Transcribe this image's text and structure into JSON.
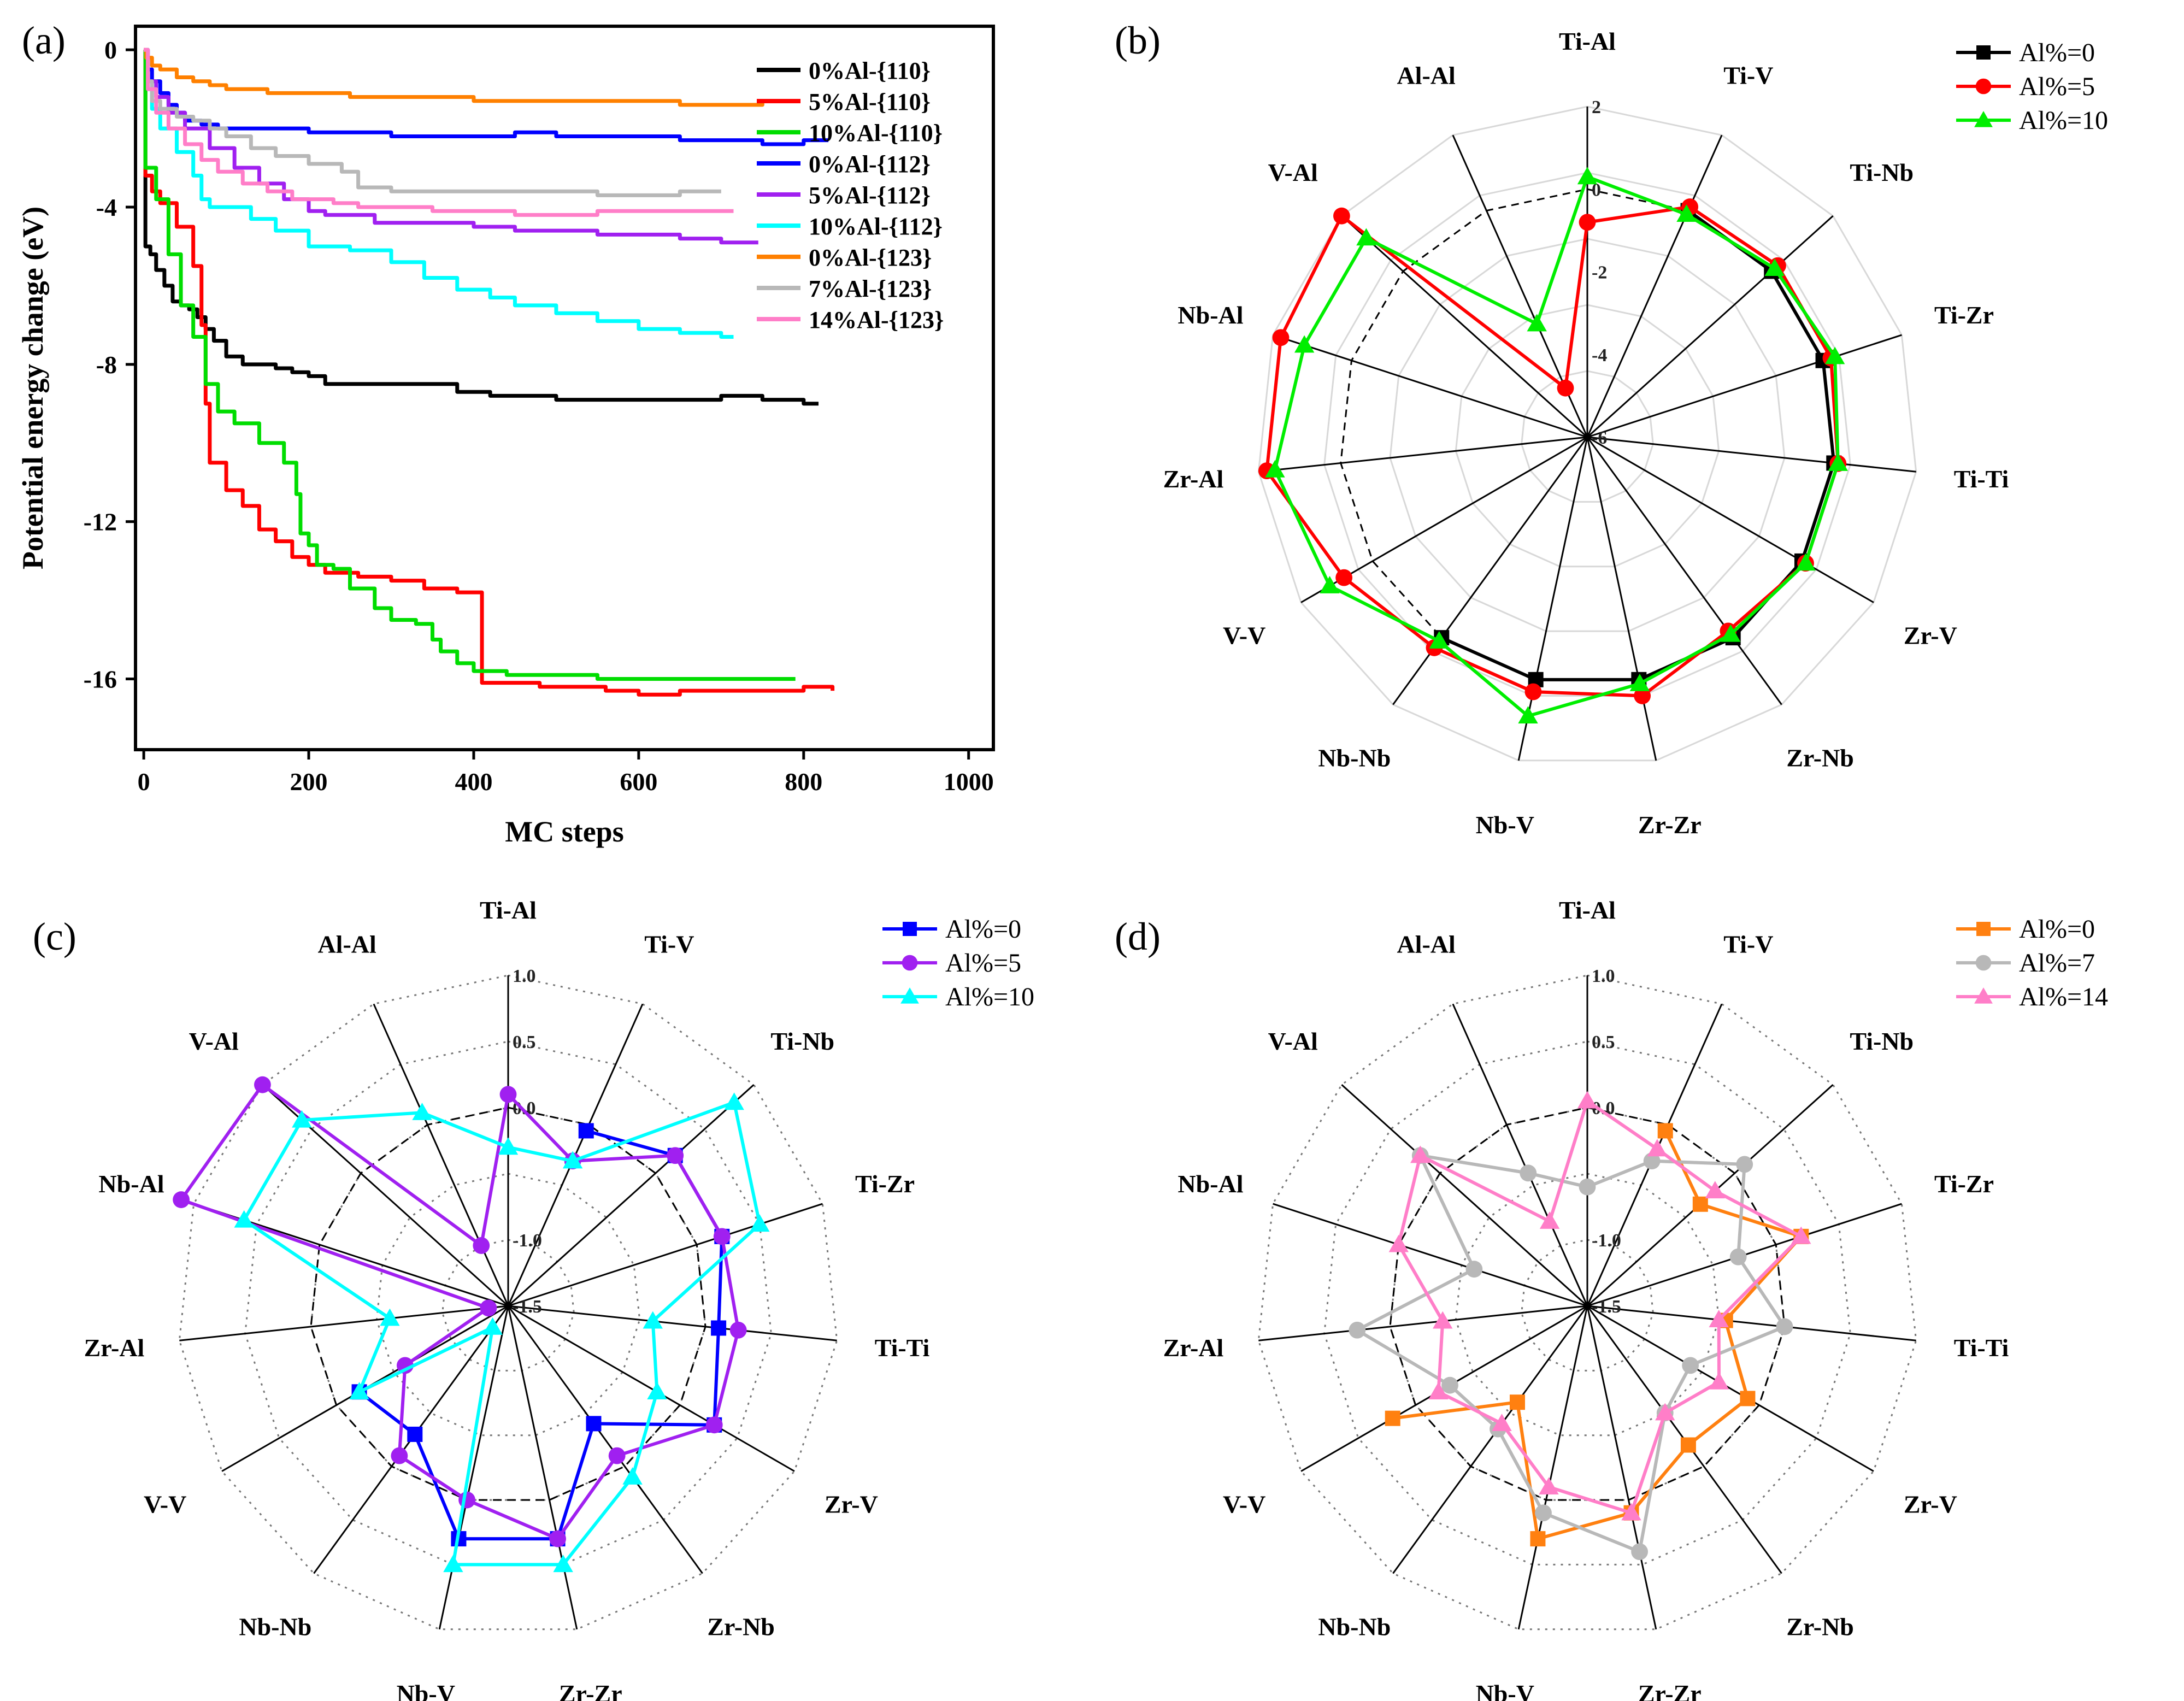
{
  "chart_data": [
    {
      "panel": "(a)",
      "type": "line",
      "xlabel": "MC steps",
      "ylabel": "Potential energy change (eV)",
      "xlim": [
        -10,
        1030
      ],
      "ylim": [
        -17.8,
        0.6
      ],
      "xticks": [
        0,
        200,
        400,
        600,
        800,
        1000
      ],
      "yticks": [
        0,
        -4,
        -8,
        -12,
        -16
      ],
      "series": [
        {
          "name": "0%Al-{110}",
          "color": "#000000",
          "x": [
            0,
            2,
            8,
            15,
            25,
            35,
            45,
            55,
            65,
            75,
            85,
            100,
            120,
            140,
            160,
            180,
            200,
            220,
            300,
            380,
            400,
            420,
            450,
            500,
            550,
            600,
            650,
            700,
            750,
            780,
            800,
            818
          ],
          "y": [
            0,
            -5,
            -5.2,
            -5.6,
            -6,
            -6.4,
            -6.5,
            -6.6,
            -6.8,
            -7.1,
            -7.4,
            -7.8,
            -8,
            -8,
            -8.1,
            -8.2,
            -8.3,
            -8.5,
            -8.5,
            -8.7,
            -8.7,
            -8.8,
            -8.8,
            -8.9,
            -8.9,
            -8.9,
            -8.9,
            -8.8,
            -8.9,
            -8.9,
            -9,
            -9
          ]
        },
        {
          "name": "5%Al-{110}",
          "color": "#ff0000",
          "x": [
            0,
            2,
            10,
            20,
            40,
            60,
            70,
            75,
            80,
            100,
            120,
            140,
            160,
            180,
            200,
            220,
            260,
            300,
            340,
            380,
            408,
            410,
            440,
            480,
            520,
            560,
            600,
            650,
            700,
            750,
            800,
            835
          ],
          "y": [
            0,
            -3.2,
            -3.6,
            -3.9,
            -4.5,
            -5.5,
            -7,
            -9,
            -10.5,
            -11.2,
            -11.6,
            -12.2,
            -12.5,
            -12.9,
            -13.1,
            -13.3,
            -13.4,
            -13.5,
            -13.7,
            -13.8,
            -13.8,
            -16.1,
            -16.1,
            -16.2,
            -16.2,
            -16.3,
            -16.4,
            -16.3,
            -16.3,
            -16.3,
            -16.2,
            -16.3
          ]
        },
        {
          "name": "10%Al-{110}",
          "color": "#00dd00",
          "x": [
            0,
            2,
            15,
            30,
            45,
            60,
            75,
            90,
            110,
            140,
            170,
            185,
            190,
            200,
            210,
            230,
            250,
            280,
            300,
            330,
            350,
            360,
            380,
            400,
            440,
            500,
            550,
            600,
            650,
            700,
            750,
            790
          ],
          "y": [
            0,
            -3,
            -3.8,
            -5.2,
            -6.5,
            -7.3,
            -8.5,
            -9.2,
            -9.5,
            -10,
            -10.5,
            -11.3,
            -12.3,
            -12.6,
            -13.1,
            -13.2,
            -13.7,
            -14.2,
            -14.5,
            -14.6,
            -15,
            -15.3,
            -15.6,
            -15.8,
            -15.9,
            -15.9,
            -16,
            -16,
            -16,
            -16,
            -16,
            -16
          ]
        },
        {
          "name": "0%Al-{112}",
          "color": "#0000ff",
          "x": [
            0,
            5,
            10,
            20,
            30,
            40,
            50,
            70,
            90,
            120,
            160,
            200,
            300,
            400,
            450,
            500,
            550,
            600,
            650,
            700,
            750,
            800,
            830
          ],
          "y": [
            0,
            -0.5,
            -0.8,
            -1.1,
            -1.4,
            -1.6,
            -1.8,
            -1.9,
            -2,
            -2,
            -2,
            -2.1,
            -2.2,
            -2.2,
            -2.1,
            -2.2,
            -2.2,
            -2.2,
            -2.3,
            -2.3,
            -2.4,
            -2.3,
            -2.3
          ]
        },
        {
          "name": "5%Al-{112}",
          "color": "#a020f0",
          "x": [
            0,
            5,
            15,
            30,
            50,
            80,
            110,
            140,
            170,
            200,
            220,
            250,
            280,
            300,
            350,
            400,
            450,
            500,
            550,
            600,
            650,
            700,
            720,
            745
          ],
          "y": [
            0,
            -0.8,
            -1.2,
            -1.6,
            -2,
            -2.5,
            -3,
            -3.4,
            -3.8,
            -4.1,
            -4.2,
            -4.2,
            -4.4,
            -4.4,
            -4.4,
            -4.5,
            -4.6,
            -4.6,
            -4.7,
            -4.7,
            -4.8,
            -4.9,
            -4.9,
            -4.9
          ]
        },
        {
          "name": "10%Al-{112}",
          "color": "#00ffff",
          "x": [
            0,
            5,
            10,
            20,
            40,
            60,
            70,
            80,
            100,
            130,
            160,
            200,
            250,
            300,
            340,
            380,
            420,
            450,
            500,
            550,
            600,
            650,
            700,
            715
          ],
          "y": [
            0,
            -1,
            -1.5,
            -2,
            -2.6,
            -3.2,
            -3.8,
            -4,
            -4,
            -4.3,
            -4.6,
            -5,
            -5.1,
            -5.4,
            -5.8,
            -6.1,
            -6.3,
            -6.5,
            -6.7,
            -6.9,
            -7.1,
            -7.2,
            -7.3,
            -7.3
          ]
        },
        {
          "name": "0%Al-{123}",
          "color": "#ff8000",
          "x": [
            0,
            3,
            10,
            20,
            40,
            60,
            80,
            100,
            150,
            200,
            250,
            300,
            350,
            400,
            450,
            500,
            550,
            600,
            650,
            700,
            750,
            770
          ],
          "y": [
            0,
            -0.2,
            -0.4,
            -0.5,
            -0.7,
            -0.8,
            -0.9,
            -1,
            -1.1,
            -1.1,
            -1.2,
            -1.2,
            -1.2,
            -1.3,
            -1.3,
            -1.3,
            -1.3,
            -1.3,
            -1.4,
            -1.4,
            -1.3,
            -1.3
          ]
        },
        {
          "name": "7%Al-{123}",
          "color": "#b8b8b8",
          "x": [
            0,
            5,
            10,
            20,
            40,
            60,
            80,
            100,
            130,
            160,
            200,
            240,
            260,
            300,
            350,
            400,
            450,
            500,
            550,
            600,
            650,
            680,
            700
          ],
          "y": [
            0,
            -0.8,
            -1.3,
            -1.5,
            -1.7,
            -1.8,
            -2,
            -2.2,
            -2.5,
            -2.7,
            -2.9,
            -3.1,
            -3.5,
            -3.6,
            -3.6,
            -3.6,
            -3.6,
            -3.6,
            -3.7,
            -3.7,
            -3.6,
            -3.6,
            -3.6
          ]
        },
        {
          "name": "14%Al-{123}",
          "color": "#ff7ec8",
          "x": [
            0,
            5,
            15,
            30,
            50,
            70,
            90,
            120,
            150,
            180,
            200,
            230,
            260,
            300,
            350,
            400,
            450,
            500,
            550,
            600,
            650,
            700,
            715
          ],
          "y": [
            0,
            -1,
            -1.6,
            -2,
            -2.4,
            -2.8,
            -3.1,
            -3.4,
            -3.6,
            -3.8,
            -3.8,
            -3.9,
            -4,
            -4,
            -4.1,
            -4.1,
            -4.2,
            -4.2,
            -4.1,
            -4.1,
            -4.1,
            -4.1,
            -4.1
          ]
        }
      ]
    },
    {
      "panel": "(b)",
      "type": "radar",
      "categories": [
        "Ti-Al",
        "Ti-V",
        "Ti-Nb",
        "Ti-Zr",
        "Ti-Ti",
        "Zr-V",
        "Zr-Nb",
        "Zr-Zr",
        "Nb-V",
        "Nb-Nb",
        "V-V",
        "Zr-Al",
        "Nb-Al",
        "V-Al",
        "Al-Al"
      ],
      "rlim": [
        -6,
        2
      ],
      "rticks": [
        2,
        0,
        -2,
        -4,
        -6
      ],
      "rtick_labels": [
        "2",
        "0",
        "-2",
        "-4",
        "-6"
      ],
      "reference": 0,
      "series": [
        {
          "name": "Al%=0",
          "color": "#000000",
          "marker": "square",
          "values": [
            null,
            0,
            0,
            0,
            0,
            0,
            0,
            0,
            0,
            0,
            null,
            null,
            null,
            null,
            null
          ]
        },
        {
          "name": "Al%=5",
          "color": "#ff0000",
          "marker": "circle",
          "values": [
            -0.8,
            0.1,
            0.2,
            0.2,
            0.1,
            0.1,
            -0.2,
            0.4,
            0.3,
            0.3,
            0.8,
            1.8,
            1.8,
            2.0,
            -4.7
          ]
        },
        {
          "name": "Al%=10",
          "color": "#00ee00",
          "marker": "triangle",
          "values": [
            0.3,
            -0.1,
            0.1,
            0.3,
            0.1,
            0.1,
            -0.1,
            0.1,
            0.9,
            0.1,
            1.2,
            1.6,
            1.2,
            1.2,
            -3
          ]
        }
      ]
    },
    {
      "panel": "(c)",
      "type": "radar",
      "categories": [
        "Ti-Al",
        "Ti-V",
        "Ti-Nb",
        "Ti-Zr",
        "Ti-Ti",
        "Zr-V",
        "Zr-Nb",
        "Zr-Zr",
        "Nb-V",
        "Nb-Nb",
        "V-V",
        "Zr-Al",
        "Nb-Al",
        "V-Al",
        "Al-Al"
      ],
      "rlim": [
        -1.5,
        1.0
      ],
      "rticks": [
        1.0,
        0.5,
        0.0,
        -1.0,
        -1.5
      ],
      "rtick_labels": [
        "1.0",
        "0.5",
        "0.0",
        "-1.0",
        "-1.5"
      ],
      "reference": 0,
      "series": [
        {
          "name": "Al%=0",
          "color": "#0000ff",
          "marker": "square",
          "values": [
            null,
            -0.05,
            0.2,
            0.2,
            0.1,
            0.3,
            -0.4,
            0.3,
            0.3,
            -0.3,
            -0.2,
            null,
            null,
            null,
            null
          ]
        },
        {
          "name": "Al%=5",
          "color": "#a020f0",
          "marker": "circle",
          "values": [
            0.1,
            -0.3,
            0.2,
            0.2,
            0.25,
            0.3,
            -0.1,
            0.3,
            0,
            -0.1,
            -0.6,
            -1.35,
            1.1,
            1.0,
            -1.0
          ]
        },
        {
          "name": "Al%=10",
          "color": "#00ffff",
          "marker": "triangle",
          "values": [
            -0.3,
            -0.3,
            0.8,
            0.5,
            -0.4,
            -0.2,
            0.1,
            0.5,
            0.5,
            -1.3,
            -0.2,
            -0.6,
            0.6,
            0.6,
            0.1
          ]
        }
      ]
    },
    {
      "panel": "(d)",
      "type": "radar",
      "categories": [
        "Ti-Al",
        "Ti-V",
        "Ti-Nb",
        "Ti-Zr",
        "Ti-Ti",
        "Zr-V",
        "Zr-Nb",
        "Zr-Zr",
        "Nb-V",
        "Nb-Nb",
        "V-V",
        "Zr-Al",
        "Nb-Al",
        "V-Al",
        "Al-Al"
      ],
      "rlim": [
        -1.5,
        1.0
      ],
      "rticks": [
        1.0,
        0.5,
        0.0,
        -1.0,
        -1.5
      ],
      "rtick_labels": [
        "1.0",
        "0.5",
        "0.0",
        "-1.0",
        "-1.5"
      ],
      "reference": 0,
      "series": [
        {
          "name": "Al%=0",
          "color": "#ff8010",
          "marker": "square",
          "values": [
            null,
            -0.05,
            -0.35,
            0.2,
            -0.45,
            -0.1,
            -0.2,
            0.1,
            0.3,
            -0.6,
            0.2,
            null,
            null,
            null,
            null
          ]
        },
        {
          "name": "Al%=7",
          "color": "#b8b8b8",
          "marker": "circle",
          "values": [
            -0.6,
            -0.3,
            0.1,
            -0.3,
            0,
            -0.6,
            -0.5,
            0.4,
            0.1,
            -0.35,
            -0.3,
            0.25,
            -0.6,
            0.2,
            -0.4
          ]
        },
        {
          "name": "Al%=14",
          "color": "#ff7ec8",
          "marker": "triangle",
          "values": [
            0.05,
            -0.2,
            -0.2,
            0.2,
            -0.5,
            -0.35,
            -0.5,
            0.1,
            -0.1,
            -0.4,
            -0.2,
            -0.4,
            0,
            0.2,
            -0.8
          ]
        }
      ]
    }
  ]
}
